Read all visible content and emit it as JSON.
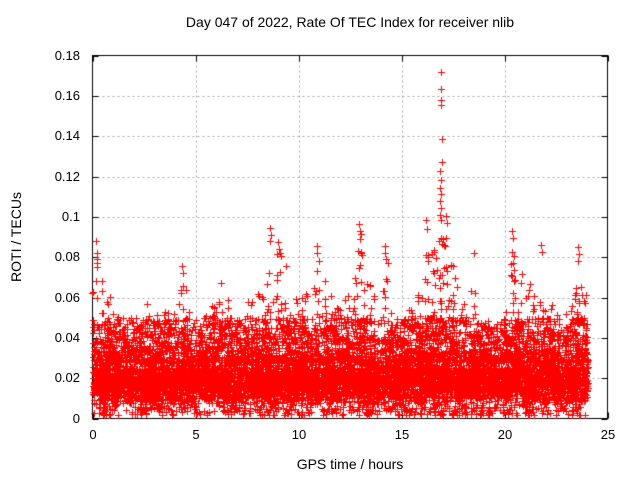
{
  "chart_data": {
    "type": "scatter",
    "title": "Day 047 of 2022, Rate Of TEC Index for receiver nlib",
    "xlabel": "GPS time / hours",
    "ylabel": "ROTI / TECUs",
    "xlim": [
      0,
      25
    ],
    "ylim": [
      0,
      0.18
    ],
    "xticks": [
      0,
      5,
      10,
      15,
      20,
      25
    ],
    "xtick_labels": [
      "0",
      "5",
      "10",
      "15",
      "20",
      "25"
    ],
    "yticks": [
      0,
      0.02,
      0.04,
      0.06,
      0.08,
      0.1,
      0.12,
      0.14,
      0.16,
      0.18
    ],
    "ytick_labels": [
      "0",
      "0.02",
      "0.04",
      "0.06",
      "0.08",
      "0.1",
      "0.12",
      "0.14",
      "0.16",
      "0.18"
    ],
    "grid": {
      "show": true,
      "color": "#a6a6a6",
      "style": "dotted"
    },
    "frame_color": "#000000",
    "background_color": "#ffffff",
    "marker": {
      "shape": "plus",
      "color": "#ff0000",
      "size": 7
    },
    "legend": "none",
    "description": "Dense red '+' scatter of ROTI values over 24 h: near-solid band 0.005-0.03 TECU, burst columns reaching 0.05-0.1, and an isolated storm spike near 16.9 h peaking at 0.172 TECU.",
    "time_span_hours": [
      0.01,
      24.05
    ],
    "seed": 47,
    "baseline_band": {
      "n": 6000,
      "y_min": 0.005,
      "y_max": 0.03
    },
    "mid_band": {
      "n": 2600,
      "y_min": 0.028,
      "y_max": 0.05,
      "pow": 1.7
    },
    "low_fringe": {
      "n": 350,
      "y_min": 0.0015,
      "y_max": 0.006
    },
    "burst_width_hours": 0.21,
    "burst_base": 0.022,
    "burst_pow": 1.8,
    "bursts": [
      [
        0.15,
        0.082,
        22
      ],
      [
        0.45,
        0.07,
        18
      ],
      [
        0.8,
        0.062,
        20
      ],
      [
        1.2,
        0.056,
        16
      ],
      [
        1.6,
        0.05,
        14
      ],
      [
        2.0,
        0.052,
        16
      ],
      [
        2.4,
        0.05,
        14
      ],
      [
        2.8,
        0.058,
        16
      ],
      [
        3.2,
        0.052,
        14
      ],
      [
        3.6,
        0.056,
        16
      ],
      [
        4.0,
        0.06,
        16
      ],
      [
        4.35,
        0.068,
        18
      ],
      [
        4.7,
        0.054,
        14
      ],
      [
        5.1,
        0.05,
        14
      ],
      [
        5.5,
        0.052,
        14
      ],
      [
        5.9,
        0.056,
        16
      ],
      [
        6.25,
        0.068,
        20
      ],
      [
        6.6,
        0.06,
        16
      ],
      [
        7.0,
        0.054,
        14
      ],
      [
        7.4,
        0.058,
        16
      ],
      [
        7.8,
        0.06,
        16
      ],
      [
        8.2,
        0.064,
        18
      ],
      [
        8.6,
        0.09,
        26
      ],
      [
        9.0,
        0.082,
        22
      ],
      [
        9.45,
        0.078,
        20
      ],
      [
        9.9,
        0.06,
        14
      ],
      [
        10.3,
        0.062,
        16
      ],
      [
        10.9,
        0.08,
        22
      ],
      [
        11.3,
        0.068,
        20
      ],
      [
        11.7,
        0.064,
        22
      ],
      [
        12.0,
        0.06,
        20
      ],
      [
        12.4,
        0.068,
        22
      ],
      [
        12.75,
        0.072,
        24
      ],
      [
        13.0,
        0.09,
        28
      ],
      [
        13.3,
        0.075,
        20
      ],
      [
        13.6,
        0.068,
        18
      ],
      [
        14.2,
        0.08,
        18
      ],
      [
        14.6,
        0.058,
        16
      ],
      [
        15.0,
        0.052,
        14
      ],
      [
        15.4,
        0.056,
        14
      ],
      [
        15.8,
        0.062,
        16
      ],
      [
        16.2,
        0.09,
        24
      ],
      [
        16.55,
        0.088,
        26
      ],
      [
        16.9,
        0.096,
        30
      ],
      [
        17.1,
        0.093,
        28
      ],
      [
        17.35,
        0.085,
        22
      ],
      [
        17.6,
        0.07,
        18
      ],
      [
        18.0,
        0.058,
        14
      ],
      [
        18.5,
        0.07,
        14
      ],
      [
        18.9,
        0.05,
        12
      ],
      [
        19.3,
        0.048,
        12
      ],
      [
        19.7,
        0.05,
        12
      ],
      [
        20.05,
        0.054,
        14
      ],
      [
        20.4,
        0.085,
        22
      ],
      [
        20.75,
        0.072,
        20
      ],
      [
        21.1,
        0.068,
        18
      ],
      [
        21.5,
        0.065,
        16
      ],
      [
        21.85,
        0.078,
        20
      ],
      [
        22.2,
        0.058,
        16
      ],
      [
        22.6,
        0.054,
        14
      ],
      [
        23.0,
        0.058,
        16
      ],
      [
        23.4,
        0.065,
        16
      ],
      [
        23.7,
        0.078,
        20
      ],
      [
        23.95,
        0.065,
        14
      ]
    ],
    "outliers": [
      [
        0.18,
        0.088
      ],
      [
        0.22,
        0.082
      ],
      [
        0.2,
        0.079
      ],
      [
        0.24,
        0.077
      ],
      [
        0.2,
        0.075
      ],
      [
        4.35,
        0.0755
      ],
      [
        4.4,
        0.072
      ],
      [
        8.62,
        0.0945
      ],
      [
        8.66,
        0.091
      ],
      [
        8.6,
        0.088
      ],
      [
        9.0,
        0.0875
      ],
      [
        9.05,
        0.084
      ],
      [
        10.88,
        0.0855
      ],
      [
        10.92,
        0.082
      ],
      [
        12.95,
        0.0965
      ],
      [
        13.0,
        0.093
      ],
      [
        13.05,
        0.0915
      ],
      [
        12.98,
        0.089
      ],
      [
        14.18,
        0.0855
      ],
      [
        14.22,
        0.082
      ],
      [
        16.2,
        0.0985
      ],
      [
        16.25,
        0.094
      ],
      [
        16.91,
        0.172
      ],
      [
        16.91,
        0.1635
      ],
      [
        16.9,
        0.158
      ],
      [
        16.93,
        0.1555
      ],
      [
        16.95,
        0.1385
      ],
      [
        16.97,
        0.127
      ],
      [
        16.88,
        0.1225
      ],
      [
        16.9,
        0.1185
      ],
      [
        16.86,
        0.1145
      ],
      [
        16.92,
        0.1115
      ],
      [
        16.88,
        0.108
      ],
      [
        16.9,
        0.1045
      ],
      [
        16.86,
        0.101
      ],
      [
        16.94,
        0.0985
      ],
      [
        17.18,
        0.1005
      ],
      [
        17.22,
        0.097
      ],
      [
        18.52,
        0.082
      ],
      [
        20.38,
        0.093
      ],
      [
        20.42,
        0.0895
      ],
      [
        21.78,
        0.086
      ],
      [
        21.82,
        0.0825
      ],
      [
        23.58,
        0.085
      ],
      [
        23.62,
        0.0815
      ],
      [
        23.55,
        0.078
      ]
    ]
  }
}
